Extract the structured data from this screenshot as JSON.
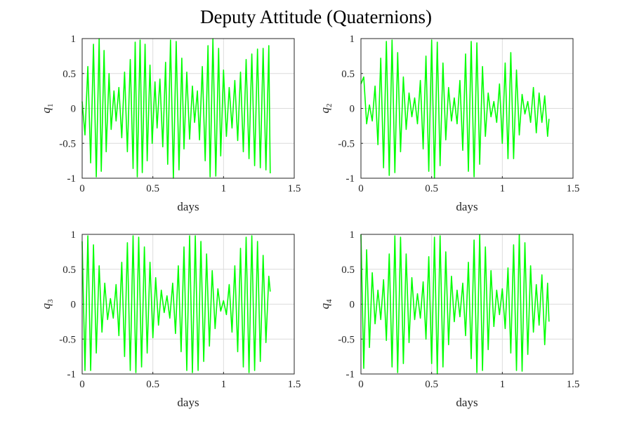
{
  "figure": {
    "title": "Deputy Attitude (Quaternions)"
  },
  "chart_data": [
    {
      "type": "line",
      "subplot": "top-left",
      "xlabel": "days",
      "ylabel_base": "q",
      "ylabel_sub": "1",
      "xlim": [
        0,
        1.5
      ],
      "ylim": [
        -1,
        1
      ],
      "xticks": [
        "0",
        "0.5",
        "1",
        "1.5"
      ],
      "yticks": [
        "-1",
        "-0.5",
        "0",
        "0.5",
        "1"
      ],
      "grid": true,
      "color": "#00ff00",
      "x": [
        0.0,
        0.02,
        0.04,
        0.06,
        0.08,
        0.1,
        0.12,
        0.135,
        0.155,
        0.17,
        0.19,
        0.205,
        0.225,
        0.24,
        0.26,
        0.28,
        0.3,
        0.32,
        0.34,
        0.36,
        0.375,
        0.39,
        0.41,
        0.425,
        0.445,
        0.46,
        0.48,
        0.495,
        0.515,
        0.53,
        0.55,
        0.57,
        0.59,
        0.605,
        0.625,
        0.645,
        0.665,
        0.685,
        0.705,
        0.72,
        0.74,
        0.76,
        0.78,
        0.795,
        0.815,
        0.83,
        0.85,
        0.87,
        0.89,
        0.905,
        0.925,
        0.945,
        0.965,
        0.98,
        1.0,
        1.02,
        1.04,
        1.06,
        1.08,
        1.1,
        1.12,
        1.14,
        1.16,
        1.18,
        1.2,
        1.22,
        1.24,
        1.26,
        1.28,
        1.3,
        1.32,
        1.33
      ],
      "y": [
        0.1,
        -0.38,
        0.6,
        -0.78,
        0.92,
        -0.98,
        1.0,
        -0.9,
        0.83,
        -0.62,
        0.5,
        -0.3,
        0.25,
        -0.18,
        0.3,
        -0.42,
        0.52,
        -0.62,
        0.7,
        -0.86,
        0.95,
        -0.98,
        0.98,
        -0.92,
        0.92,
        -0.75,
        0.62,
        -0.5,
        0.38,
        -0.28,
        0.42,
        -0.55,
        0.66,
        -0.8,
        0.98,
        -1.0,
        0.96,
        -0.88,
        0.72,
        -0.58,
        0.52,
        -0.44,
        0.32,
        -0.2,
        0.25,
        -0.45,
        0.6,
        -0.75,
        0.9,
        -0.98,
        1.0,
        -0.97,
        0.86,
        -0.68,
        0.55,
        -0.4,
        0.3,
        -0.28,
        0.4,
        -0.46,
        0.52,
        -0.62,
        0.7,
        -0.72,
        0.78,
        -0.82,
        0.85,
        -0.85,
        0.86,
        -0.88,
        0.9,
        -0.93
      ]
    },
    {
      "type": "line",
      "subplot": "top-right",
      "xlabel": "days",
      "ylabel_base": "q",
      "ylabel_sub": "2",
      "xlim": [
        0,
        1.5
      ],
      "ylim": [
        -1,
        1
      ],
      "xticks": [
        "0",
        "0.5",
        "1",
        "1.5"
      ],
      "yticks": [
        "-1",
        "-0.5",
        "0",
        "0.5",
        "1"
      ],
      "grid": true,
      "color": "#00ff00",
      "x": [
        0.0,
        0.02,
        0.04,
        0.06,
        0.08,
        0.1,
        0.12,
        0.14,
        0.16,
        0.18,
        0.2,
        0.22,
        0.24,
        0.26,
        0.28,
        0.3,
        0.32,
        0.34,
        0.36,
        0.38,
        0.4,
        0.42,
        0.44,
        0.46,
        0.48,
        0.5,
        0.52,
        0.54,
        0.56,
        0.58,
        0.6,
        0.62,
        0.64,
        0.66,
        0.68,
        0.7,
        0.72,
        0.74,
        0.76,
        0.78,
        0.8,
        0.82,
        0.84,
        0.86,
        0.88,
        0.9,
        0.92,
        0.94,
        0.96,
        0.98,
        1.0,
        1.02,
        1.04,
        1.06,
        1.08,
        1.1,
        1.12,
        1.14,
        1.16,
        1.18,
        1.2,
        1.22,
        1.24,
        1.26,
        1.28,
        1.3,
        1.32,
        1.33
      ],
      "y": [
        0.35,
        0.45,
        -0.22,
        0.05,
        -0.18,
        0.32,
        -0.52,
        0.72,
        -0.85,
        0.96,
        -0.96,
        0.98,
        -0.92,
        0.8,
        -0.62,
        0.45,
        -0.3,
        0.22,
        -0.12,
        0.15,
        -0.22,
        0.4,
        -0.58,
        0.75,
        -0.9,
        0.98,
        -1.0,
        0.95,
        -0.82,
        0.65,
        -0.45,
        0.3,
        -0.18,
        0.15,
        -0.22,
        0.4,
        -0.6,
        0.78,
        -0.9,
        0.96,
        -0.98,
        0.94,
        -0.8,
        0.6,
        -0.4,
        0.22,
        -0.12,
        0.1,
        -0.2,
        0.35,
        -0.5,
        0.65,
        -0.72,
        0.8,
        -0.72,
        0.55,
        -0.38,
        0.2,
        -0.08,
        0.1,
        -0.2,
        0.3,
        -0.35,
        0.22,
        -0.2,
        0.18,
        -0.4,
        -0.15
      ]
    },
    {
      "type": "line",
      "subplot": "bottom-left",
      "xlabel": "days",
      "ylabel_base": "q",
      "ylabel_sub": "3",
      "xlim": [
        0,
        1.5
      ],
      "ylim": [
        -1,
        1
      ],
      "xticks": [
        "0",
        "0.5",
        "1",
        "1.5"
      ],
      "yticks": [
        "-1",
        "-0.5",
        "0",
        "0.5",
        "1"
      ],
      "grid": true,
      "color": "#00ff00",
      "x": [
        0.0,
        0.02,
        0.04,
        0.06,
        0.08,
        0.1,
        0.12,
        0.14,
        0.16,
        0.18,
        0.2,
        0.22,
        0.24,
        0.26,
        0.28,
        0.3,
        0.32,
        0.34,
        0.36,
        0.38,
        0.4,
        0.42,
        0.44,
        0.46,
        0.48,
        0.5,
        0.52,
        0.54,
        0.56,
        0.58,
        0.6,
        0.62,
        0.64,
        0.66,
        0.68,
        0.7,
        0.72,
        0.74,
        0.76,
        0.78,
        0.8,
        0.82,
        0.84,
        0.86,
        0.88,
        0.9,
        0.92,
        0.94,
        0.96,
        0.98,
        1.0,
        1.02,
        1.04,
        1.06,
        1.08,
        1.1,
        1.12,
        1.14,
        1.16,
        1.18,
        1.2,
        1.22,
        1.24,
        1.26,
        1.28,
        1.3,
        1.32,
        1.33
      ],
      "y": [
        0.9,
        -0.95,
        0.98,
        -0.95,
        0.85,
        -0.7,
        0.55,
        -0.4,
        0.3,
        -0.22,
        0.08,
        -0.2,
        0.28,
        -0.45,
        0.6,
        -0.75,
        0.88,
        -0.95,
        0.98,
        -0.98,
        0.96,
        -0.9,
        0.82,
        -0.7,
        0.6,
        -0.48,
        0.38,
        -0.3,
        0.2,
        -0.12,
        0.12,
        -0.2,
        0.3,
        -0.42,
        0.55,
        -0.68,
        0.82,
        -0.95,
        0.98,
        -0.98,
        0.98,
        -0.95,
        0.9,
        -0.82,
        0.72,
        -0.6,
        0.48,
        -0.35,
        0.22,
        -0.1,
        0.05,
        -0.15,
        0.28,
        -0.4,
        0.55,
        -0.68,
        0.8,
        -0.9,
        0.96,
        -0.98,
        0.98,
        -0.95,
        0.9,
        -0.82,
        0.7,
        -0.55,
        0.4,
        0.18
      ]
    },
    {
      "type": "line",
      "subplot": "bottom-right",
      "xlabel": "days",
      "ylabel_base": "q",
      "ylabel_sub": "4",
      "xlim": [
        0,
        1.5
      ],
      "ylim": [
        -1,
        1
      ],
      "xticks": [
        "0",
        "0.5",
        "1",
        "1.5"
      ],
      "yticks": [
        "-1",
        "-0.5",
        "0",
        "0.5",
        "1"
      ],
      "grid": true,
      "color": "#00ff00",
      "x": [
        0.0,
        0.02,
        0.04,
        0.06,
        0.08,
        0.1,
        0.12,
        0.14,
        0.16,
        0.18,
        0.2,
        0.22,
        0.24,
        0.26,
        0.28,
        0.3,
        0.32,
        0.34,
        0.36,
        0.38,
        0.4,
        0.42,
        0.44,
        0.46,
        0.48,
        0.5,
        0.52,
        0.54,
        0.56,
        0.58,
        0.6,
        0.62,
        0.64,
        0.66,
        0.68,
        0.7,
        0.72,
        0.74,
        0.76,
        0.78,
        0.8,
        0.82,
        0.84,
        0.86,
        0.88,
        0.9,
        0.92,
        0.94,
        0.96,
        0.98,
        1.0,
        1.02,
        1.04,
        1.06,
        1.08,
        1.1,
        1.12,
        1.14,
        1.16,
        1.18,
        1.2,
        1.22,
        1.24,
        1.26,
        1.28,
        1.3,
        1.32,
        1.33
      ],
      "y": [
        1.0,
        -0.92,
        0.78,
        -0.62,
        0.45,
        -0.28,
        0.2,
        -0.22,
        0.35,
        -0.52,
        0.72,
        -0.9,
        0.98,
        -0.98,
        0.96,
        -0.85,
        0.72,
        -0.55,
        0.38,
        -0.22,
        0.15,
        -0.2,
        0.32,
        -0.5,
        0.68,
        -0.85,
        0.96,
        -1.0,
        0.98,
        -0.9,
        0.75,
        -0.58,
        0.4,
        -0.25,
        0.2,
        -0.18,
        0.3,
        -0.45,
        0.6,
        -0.78,
        0.92,
        -0.98,
        1.0,
        -0.95,
        0.82,
        -0.65,
        0.48,
        -0.32,
        0.2,
        -0.15,
        0.22,
        -0.35,
        0.52,
        -0.7,
        0.85,
        -0.95,
        1.0,
        -0.96,
        0.88,
        -0.72,
        0.55,
        -0.4,
        0.28,
        -0.3,
        0.42,
        -0.58,
        0.3,
        -0.25
      ]
    }
  ]
}
